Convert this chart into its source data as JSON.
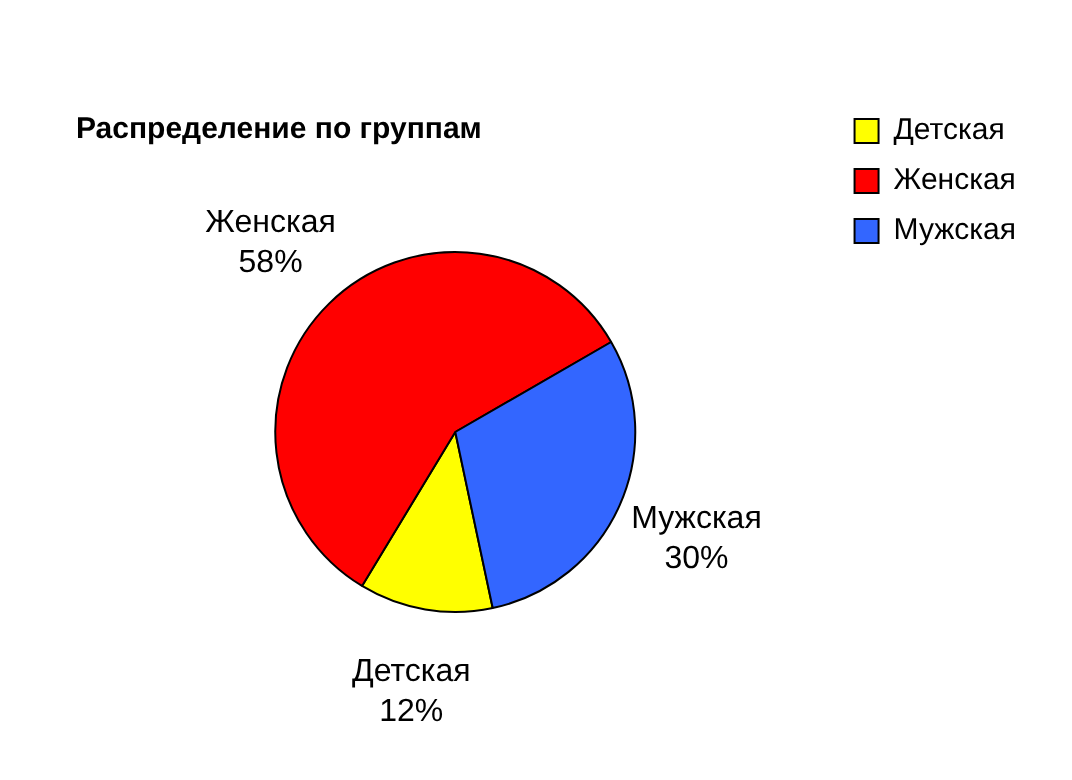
{
  "chart_data": {
    "type": "pie",
    "title": "Распределение по группам",
    "categories": [
      "Детская",
      "Женская",
      "Мужская"
    ],
    "values": [
      12,
      58,
      30
    ],
    "colors": [
      "#ffff00",
      "#ff0000",
      "#3366ff"
    ],
    "value_labels": [
      "12%",
      "58%",
      "30%"
    ],
    "legend": "top right"
  }
}
